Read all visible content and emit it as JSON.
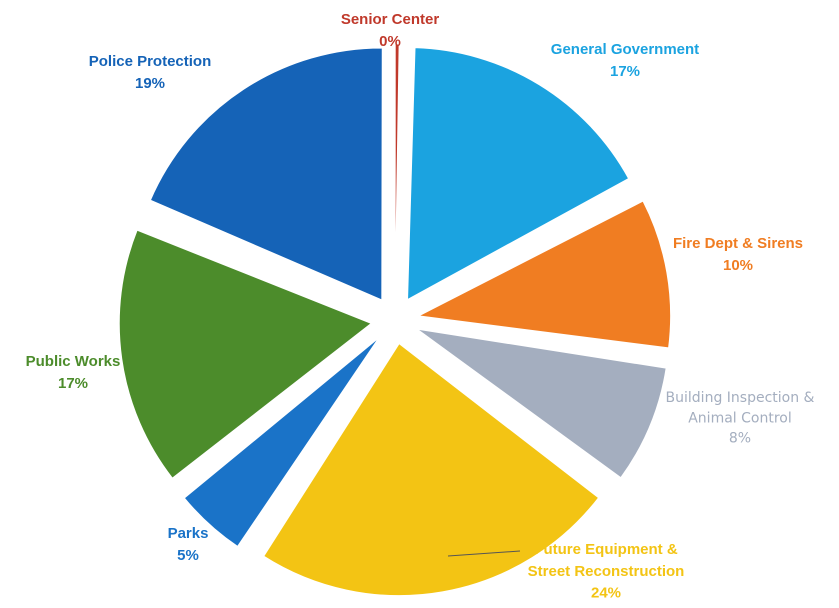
{
  "chart_data": {
    "type": "pie",
    "title": "",
    "exploded": true,
    "legend": "none",
    "slices": [
      {
        "name": "Senior Center",
        "value": 0,
        "label": "0%",
        "color": "#C0392B"
      },
      {
        "name": "General Government",
        "value": 17,
        "label": "17%",
        "color": "#1BA3E0"
      },
      {
        "name": "Fire Dept & Sirens",
        "value": 10,
        "label": "10%",
        "color": "#F07D22"
      },
      {
        "name": "Building Inspection & Animal Control",
        "value": 8,
        "label": "8%",
        "color": "#A4AEBF"
      },
      {
        "name": "Future Equipment & Street Reconstruction",
        "value": 24,
        "label": "24%",
        "color": "#F3C414"
      },
      {
        "name": "Parks",
        "value": 5,
        "label": "5%",
        "color": "#1A73C8"
      },
      {
        "name": "Public Works",
        "value": 17,
        "label": "17%",
        "color": "#4C8C2B"
      },
      {
        "name": "Police Protection",
        "value": 19,
        "label": "19%",
        "color": "#1563B7"
      }
    ]
  }
}
